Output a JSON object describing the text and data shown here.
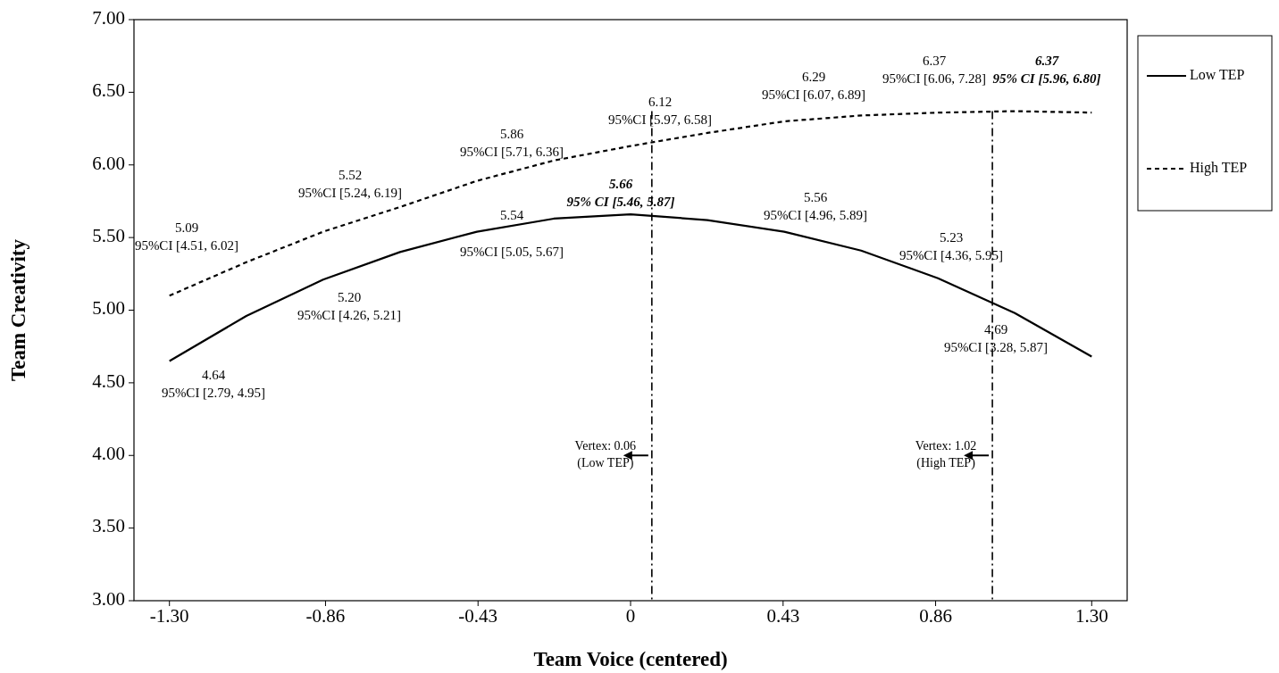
{
  "chart_data": {
    "type": "line",
    "xlabel": "Team Voice (centered)",
    "ylabel": "Team Creativity",
    "x": [
      -1.3,
      -1.0833,
      -0.8667,
      -0.65,
      -0.4333,
      -0.2167,
      0,
      0.2167,
      0.4333,
      0.65,
      0.8667,
      1.0833,
      1.3
    ],
    "series": [
      {
        "name": "Low TEP",
        "color": "#000000",
        "line_style": "solid",
        "values": [
          4.65,
          4.96,
          5.21,
          5.4,
          5.54,
          5.63,
          5.66,
          5.62,
          5.54,
          5.41,
          5.22,
          4.98,
          4.68
        ]
      },
      {
        "name": "High TEP",
        "color": "#000000",
        "line_style": "dashed",
        "values": [
          5.1,
          5.33,
          5.54,
          5.71,
          5.89,
          6.03,
          6.13,
          6.22,
          6.3,
          6.34,
          6.36,
          6.37,
          6.36
        ]
      }
    ],
    "xlim": [
      -1.4,
      1.4
    ],
    "xticks": [
      {
        "value": -1.3,
        "label": "-1.30"
      },
      {
        "value": -0.86,
        "label": "-0.86"
      },
      {
        "value": -0.43,
        "label": "-0.43"
      },
      0,
      {
        "value": 0.43,
        "label": "0.43"
      },
      {
        "value": 0.86,
        "label": "0.86"
      },
      {
        "value": 1.3,
        "label": "1.30"
      }
    ],
    "ylim": [
      3,
      7
    ],
    "yticks": [
      {
        "value": 3,
        "label": "3.00"
      },
      {
        "value": 3.5,
        "label": "3.50"
      },
      {
        "value": 4,
        "label": "4.00"
      },
      {
        "value": 4.5,
        "label": "4.50"
      },
      {
        "value": 5,
        "label": "5.00"
      },
      {
        "value": 5.5,
        "label": "5.50"
      },
      {
        "value": 6,
        "label": "6.00"
      },
      {
        "value": 6.5,
        "label": "6.50"
      },
      {
        "value": 7,
        "label": "7.00"
      }
    ],
    "grid": false,
    "legend": "right",
    "marker": "none",
    "ref_lines": [
      {
        "axis": "x",
        "value": 0.06,
        "label": "Vertex: 0.06\n(Low TEP)",
        "line_style": "dashdot"
      },
      {
        "axis": "x",
        "value": 1.02,
        "label": "Vertex: 1.02\n(High TEP)",
        "line_style": "dashdot"
      }
    ],
    "annotations": [
      "5.09\n95%CI [4.51, 6.02]",
      "4.64\n95%CI [2.79, 4.95]",
      "5.52\n95%CI [5.24, 6.19]",
      "5.20\n95%CI [4.26, 5.21]",
      "5.86\n95%CI [5.71, 6.36]",
      "5.54",
      "95%CI [5.05, 5.67]",
      "5.66\n95% CI [5.46, 5.87]",
      "6.12\n95%CI [5.97, 6.58]",
      "6.29\n95%CI [6.07, 6.89]",
      "5.56\n95%CI [4.96, 5.89]",
      "6.37\n95%CI [6.06, 7.28]",
      "6.37\n95% CI [5.96, 6.80]",
      "5.23\n95%CI [4.36, 5.95]",
      "4.69\n95%CI [3.28, 5.87]"
    ]
  }
}
